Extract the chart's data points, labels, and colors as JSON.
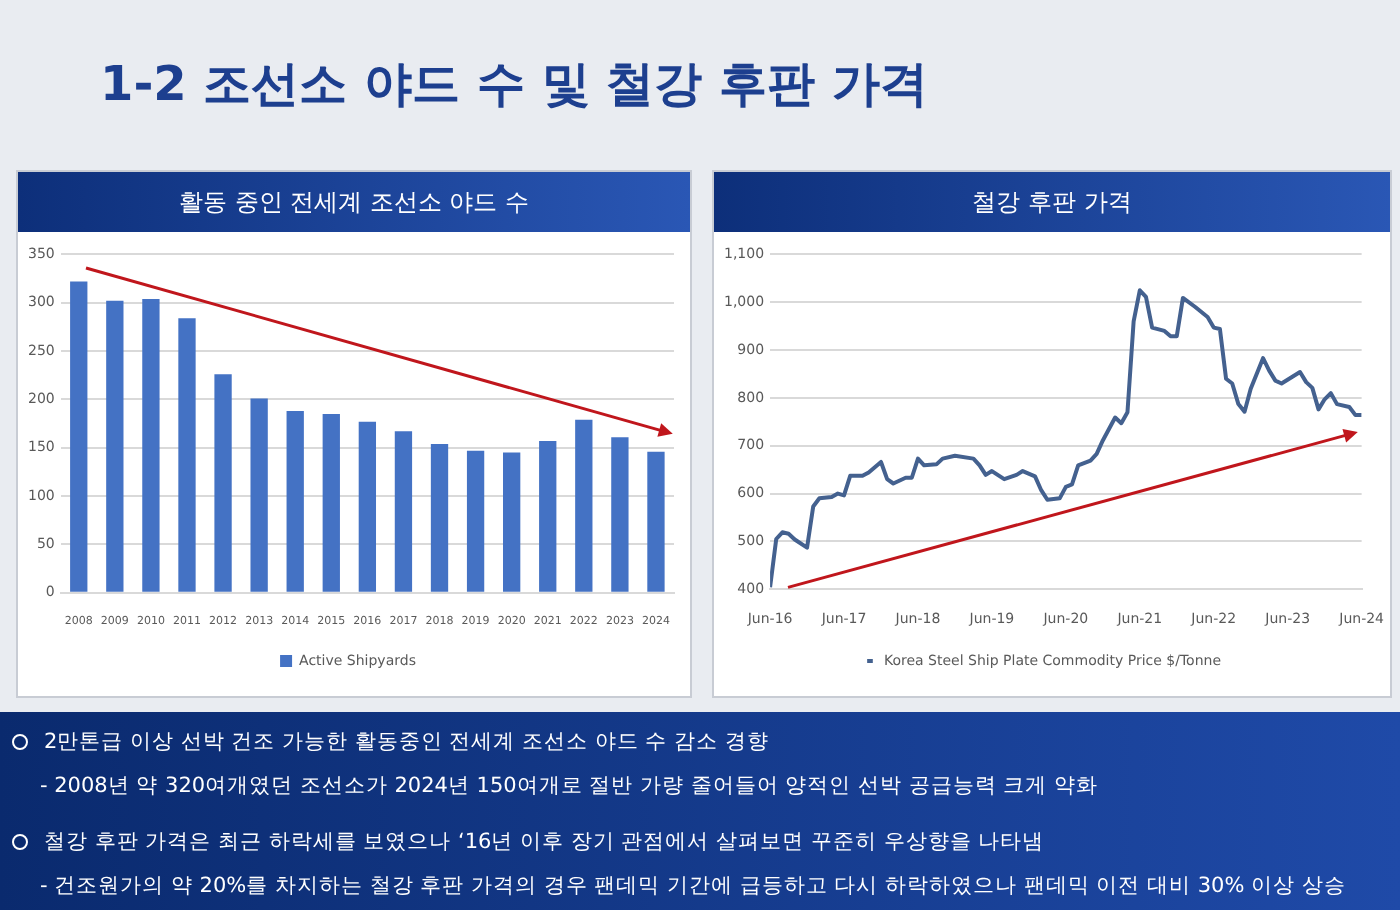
{
  "chart_data": [
    {
      "type": "bar",
      "title": "활동 중인 전세계 조선소 야드 수",
      "categories": [
        "2008",
        "2009",
        "2010",
        "2011",
        "2012",
        "2013",
        "2014",
        "2015",
        "2016",
        "2017",
        "2018",
        "2019",
        "2020",
        "2021",
        "2022",
        "2023",
        "2024"
      ],
      "series": [
        {
          "name": "Active Shipyards",
          "color": "#4472c4",
          "values": [
            322,
            302,
            304,
            284,
            226,
            201,
            188,
            185,
            177,
            167,
            154,
            147,
            145,
            157,
            179,
            161,
            146
          ]
        }
      ],
      "ylim": [
        0,
        350
      ],
      "yticks": [
        0,
        50,
        100,
        150,
        200,
        250,
        300,
        350
      ],
      "grid": "y",
      "legend": "bottom"
    },
    {
      "type": "line",
      "title": "철강 후판 가격",
      "series": [
        {
          "name": "Korea Steel Ship Plate Commodity Price $/Tonne",
          "color": "#44618f",
          "x": [
            "2016-06",
            "2016-07",
            "2016-08",
            "2016-09",
            "2016-10",
            "2016-12",
            "2017-01",
            "2017-02",
            "2017-04",
            "2017-05",
            "2017-06",
            "2017-07",
            "2017-09",
            "2017-10",
            "2017-12",
            "2018-01",
            "2018-02",
            "2018-04",
            "2018-05",
            "2018-06",
            "2018-07",
            "2018-09",
            "2018-10",
            "2018-12",
            "2019-03",
            "2019-04",
            "2019-05",
            "2019-06",
            "2019-08",
            "2019-10",
            "2019-11",
            "2020-01",
            "2020-02",
            "2020-03",
            "2020-05",
            "2020-06",
            "2020-07",
            "2020-08",
            "2020-10",
            "2020-11",
            "2020-12",
            "2021-01",
            "2021-02",
            "2021-03",
            "2021-04",
            "2021-05",
            "2021-06",
            "2021-07",
            "2021-08",
            "2021-10",
            "2021-11",
            "2021-12",
            "2022-01",
            "2022-03",
            "2022-05",
            "2022-06",
            "2022-07",
            "2022-08",
            "2022-09",
            "2022-10",
            "2022-11",
            "2022-12",
            "2023-02",
            "2023-03",
            "2023-04",
            "2023-05",
            "2023-08",
            "2023-09",
            "2023-10",
            "2023-11",
            "2023-12",
            "2024-01",
            "2024-02",
            "2024-04",
            "2024-05",
            "2024-06"
          ],
          "values": [
            404,
            505,
            519,
            516,
            504,
            487,
            573,
            590,
            593,
            600,
            596,
            637,
            637,
            644,
            666,
            630,
            621,
            633,
            633,
            673,
            659,
            661,
            673,
            679,
            673,
            659,
            639,
            647,
            630,
            639,
            647,
            636,
            607,
            587,
            590,
            614,
            619,
            659,
            669,
            683,
            711,
            735,
            759,
            747,
            770,
            960,
            1025,
            1011,
            947,
            940,
            929,
            929,
            1009,
            990,
            969,
            947,
            944,
            840,
            830,
            787,
            771,
            819,
            883,
            857,
            836,
            830,
            854,
            833,
            821,
            776,
            797,
            810,
            787,
            781,
            764,
            764
          ]
        }
      ],
      "xlim": [
        "2016-06",
        "2024-06"
      ],
      "xticks": [
        {
          "value": "2016-06",
          "label": "Jun-16"
        },
        {
          "value": "2017-06",
          "label": "Jun-17"
        },
        {
          "value": "2018-06",
          "label": "Jun-18"
        },
        {
          "value": "2019-06",
          "label": "Jun-19"
        },
        {
          "value": "2020-06",
          "label": "Jun-20"
        },
        {
          "value": "2021-06",
          "label": "Jun-21"
        },
        {
          "value": "2022-06",
          "label": "Jun-22"
        },
        {
          "value": "2023-06",
          "label": "Jun-23"
        },
        {
          "value": "2024-06",
          "label": "Jun-24"
        }
      ],
      "ylim": [
        400,
        1100
      ],
      "yticks": [
        400,
        500,
        600,
        700,
        800,
        900,
        {
          "value": 1000,
          "label": "1,000"
        },
        {
          "value": 1100,
          "label": "1,100"
        }
      ],
      "grid": "y",
      "legend": "bottom",
      "marker": "none",
      "line_style": "solid"
    },
    {
      "type": "other",
      "title": "1-2 조선소 야드 수 및 철강 후판 가격",
      "annotations": [
        "2만톤급 이상 선박 건조 가능한 활동중인 전세계 조선소 야드 수 감소 경향",
        "- 2008년 약 320여개였던 조선소가 2024년 150여개로 절반 가량 줄어들어 양적인 선박 공급능력 크게 약화",
        "철강 후판 가격은 최근 하락세를 보였으나 ‘16년 이후 장기 관점에서 살펴보면 꾸준히 우상향을 나타냄",
        "- 건조원가의 약 20%를 차지하는 철강 후판 가격의 경우 팬데믹 기간에 급등하고 다시 하락하였으나 팬데믹 이전 대비 30% 이상 상승"
      ]
    }
  ]
}
